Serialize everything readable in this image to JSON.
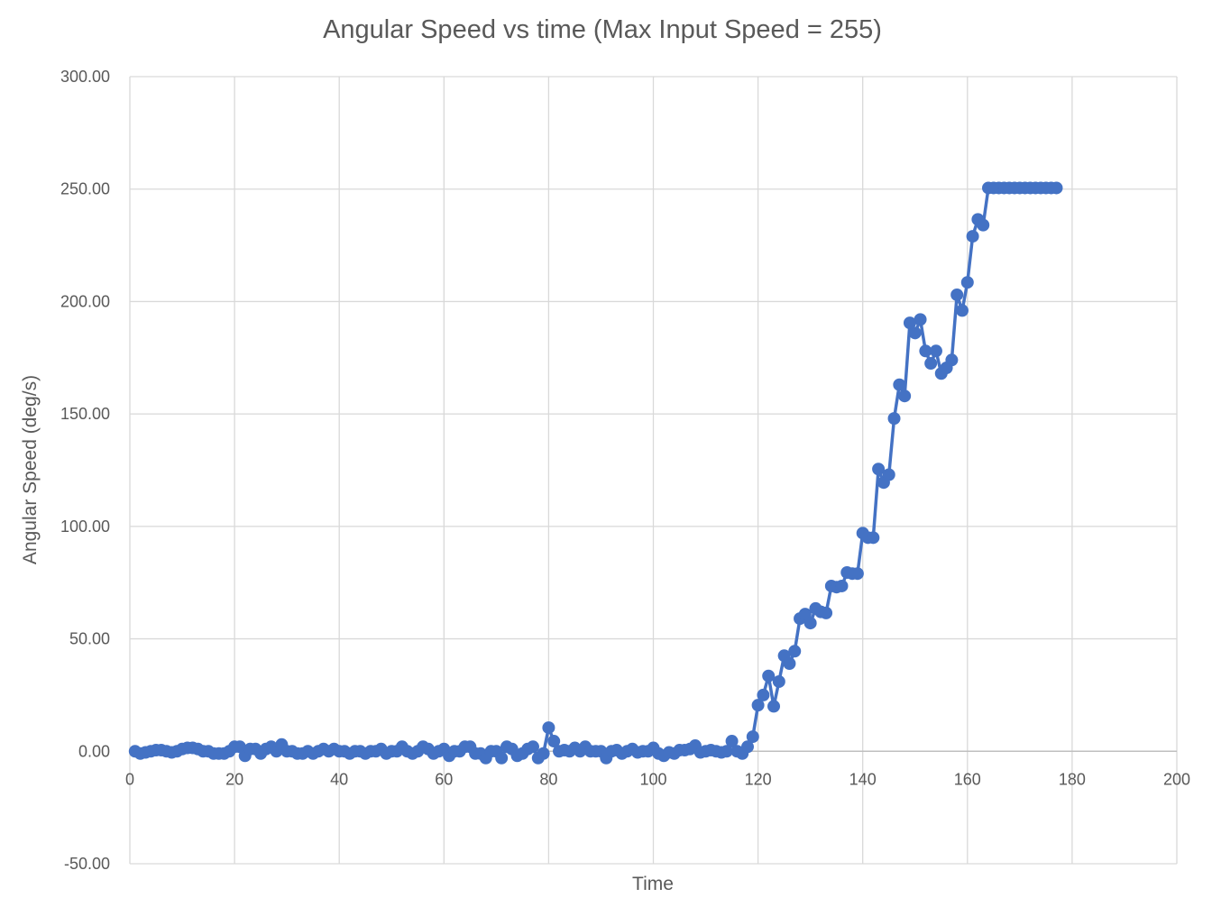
{
  "chart_data": {
    "type": "line",
    "title": "Angular Speed vs time (Max Input Speed = 255)",
    "xlabel": "Time",
    "ylabel": "Angular Speed (deg/s)",
    "xlim": [
      0,
      200
    ],
    "ylim": [
      -50,
      300
    ],
    "x_ticks": [
      "0",
      "20",
      "40",
      "60",
      "80",
      "100",
      "120",
      "140",
      "160",
      "180",
      "200"
    ],
    "y_ticks": [
      "-50.00",
      "0.00",
      "50.00",
      "100.00",
      "150.00",
      "200.00",
      "250.00",
      "300.00"
    ],
    "grid": true,
    "legend": "none",
    "series_color": "#4472C4",
    "markers": true,
    "x": [
      1,
      2,
      3,
      4,
      5,
      6,
      7,
      8,
      9,
      10,
      11,
      12,
      13,
      14,
      15,
      16,
      17,
      18,
      19,
      20,
      21,
      22,
      23,
      24,
      25,
      26,
      27,
      28,
      29,
      30,
      31,
      32,
      33,
      34,
      35,
      36,
      37,
      38,
      39,
      40,
      41,
      42,
      43,
      44,
      45,
      46,
      47,
      48,
      49,
      50,
      51,
      52,
      53,
      54,
      55,
      56,
      57,
      58,
      59,
      60,
      61,
      62,
      63,
      64,
      65,
      66,
      67,
      68,
      69,
      70,
      71,
      72,
      73,
      74,
      75,
      76,
      77,
      78,
      79,
      80,
      81,
      82,
      83,
      84,
      85,
      86,
      87,
      88,
      89,
      90,
      91,
      92,
      93,
      94,
      95,
      96,
      97,
      98,
      99,
      100,
      101,
      102,
      103,
      104,
      105,
      106,
      107,
      108,
      109,
      110,
      111,
      112,
      113,
      114,
      115,
      116,
      117,
      118,
      119,
      120,
      121,
      122,
      123,
      124,
      125,
      126,
      127,
      128,
      129,
      130,
      131,
      132,
      133,
      134,
      135,
      136,
      137,
      138,
      139,
      140,
      141,
      142,
      143,
      144,
      145,
      146,
      147,
      148,
      149,
      150,
      151,
      152,
      153,
      154,
      155,
      156,
      157,
      158,
      159,
      160,
      161,
      162,
      163,
      164,
      165,
      166,
      167,
      168,
      169,
      170,
      171,
      172,
      173,
      174,
      175,
      176,
      177
    ],
    "y": [
      0,
      -1,
      -0.5,
      0,
      0.5,
      0.5,
      0,
      -0.5,
      0,
      1,
      1.5,
      1.5,
      1,
      0,
      0,
      -1,
      -1,
      -1,
      0,
      2,
      2,
      -2,
      1,
      1,
      -1,
      1,
      2,
      0,
      3,
      0,
      0,
      -1,
      -1,
      0,
      -1,
      0,
      1,
      0,
      1,
      0,
      0,
      -1,
      0,
      0,
      -1,
      0,
      0,
      1,
      -1,
      0,
      0,
      2,
      0,
      -1,
      0,
      2,
      1,
      -1,
      0,
      1,
      -2,
      0,
      0,
      2,
      2,
      -1,
      -1,
      -3,
      0,
      0,
      -3,
      2,
      1,
      -2,
      -1,
      1,
      2,
      -3,
      -1,
      10.5,
      4.5,
      0,
      0.5,
      0,
      1.5,
      0,
      2,
      0,
      0,
      0,
      -3,
      0,
      0.5,
      -1,
      0,
      1,
      -0.5,
      0,
      0,
      1.5,
      -1,
      -2,
      -0.5,
      -1,
      0.5,
      0.5,
      1,
      2.5,
      -0.5,
      0,
      0.5,
      0,
      -0.5,
      0,
      4.5,
      0,
      -1,
      2,
      6.5,
      20.5,
      25,
      33.5,
      20,
      31,
      42.5,
      39,
      44.5,
      59,
      61,
      57,
      63.5,
      62,
      61.5,
      73.5,
      73,
      73.5,
      79.5,
      79,
      79,
      97,
      95,
      95,
      125.5,
      119.5,
      123,
      148,
      163,
      158,
      190.5,
      186,
      192,
      178,
      172.5,
      178,
      168,
      170.5,
      174,
      203,
      196,
      208.5,
      229,
      236.5,
      234,
      250.5,
      250.5,
      250.5,
      250.5,
      250.5,
      250.5,
      250.5,
      250.5,
      250.5,
      250.5,
      250.5,
      250.5,
      250.5,
      250.5
    ]
  }
}
